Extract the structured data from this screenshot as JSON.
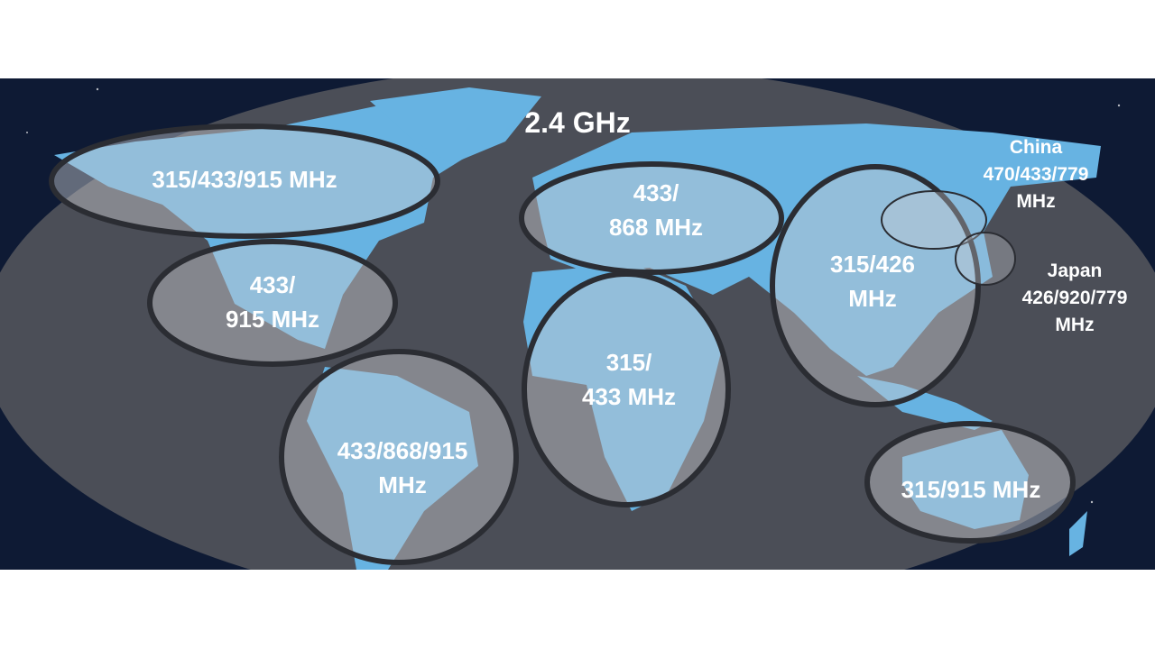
{
  "colors": {
    "space": "#0e1a34",
    "globe": "#4b4e57",
    "land": "#67b3e2",
    "region_fill": "#c9cbd0",
    "region_stroke": "#2b2d33",
    "text": "#ffffff"
  },
  "global_band": "2.4 GHz",
  "regions": [
    {
      "name": "north-america-north",
      "lines": [
        "315/433/915 MHz"
      ]
    },
    {
      "name": "north-america-south",
      "lines": [
        "433/",
        "915 MHz"
      ]
    },
    {
      "name": "south-america",
      "lines": [
        "433/868/915",
        "MHz"
      ]
    },
    {
      "name": "europe",
      "lines": [
        "433/",
        "868 MHz"
      ]
    },
    {
      "name": "africa",
      "lines": [
        "315/",
        "433 MHz"
      ]
    },
    {
      "name": "asia",
      "lines": [
        "315/426",
        "MHz"
      ]
    },
    {
      "name": "australia",
      "lines": [
        "315/915 MHz"
      ]
    }
  ],
  "callouts": [
    {
      "name": "china",
      "lines": [
        "China",
        "470/433/779",
        "MHz"
      ]
    },
    {
      "name": "japan",
      "lines": [
        "Japan",
        "426/920/779",
        "MHz"
      ]
    }
  ]
}
